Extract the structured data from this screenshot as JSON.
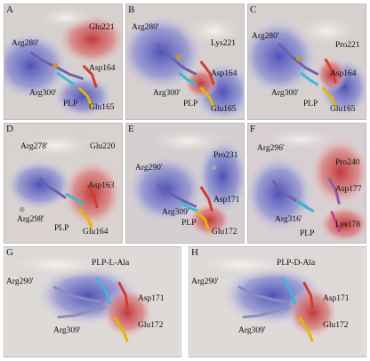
{
  "panels": [
    {
      "id": "A",
      "labels": {
        "l1": "Arg280'",
        "l2": "Glu221",
        "l3": "Asp164",
        "l4": "Arg300'",
        "l5": "PLP",
        "l6": "Glu165"
      }
    },
    {
      "id": "B",
      "labels": {
        "l1": "Arg280'",
        "l2": "Lys221",
        "l3": "Asp164",
        "l4": "Arg300'",
        "l5": "PLP",
        "l6": "Glu165"
      }
    },
    {
      "id": "C",
      "labels": {
        "l1": "Arg280'",
        "l2": "Pro221",
        "l3": "Asp164",
        "l4": "Arg300'",
        "l5": "PLP",
        "l6": "Glu165"
      }
    },
    {
      "id": "D",
      "labels": {
        "l1": "Arg278'",
        "l2": "Glu220",
        "l3": "Asp163",
        "l4": "Arg298'",
        "l5": "PLP",
        "l6": "Glu164"
      }
    },
    {
      "id": "E",
      "labels": {
        "l1": "Arg290'",
        "l2": "Pro231",
        "l3": "Asp171",
        "l4": "Arg309'",
        "l5": "PLP",
        "l6": "Glu172"
      }
    },
    {
      "id": "F",
      "labels": {
        "l1": "Arg296'",
        "l2": "Pro240",
        "l3": "Asp177",
        "l4": "Arg316'",
        "l5": "PLP",
        "l6": "Lys178"
      }
    },
    {
      "id": "G",
      "labels": {
        "l1": "Arg290'",
        "l2": "PLP-L-Ala",
        "l3": "Asp171",
        "l4": "Arg309'",
        "l6": "Glu172"
      }
    },
    {
      "id": "H",
      "labels": {
        "l1": "Arg290'",
        "l2": "PLP-D-Ala",
        "l3": "Asp171",
        "l4": "Arg309'",
        "l6": "Glu172"
      }
    }
  ]
}
